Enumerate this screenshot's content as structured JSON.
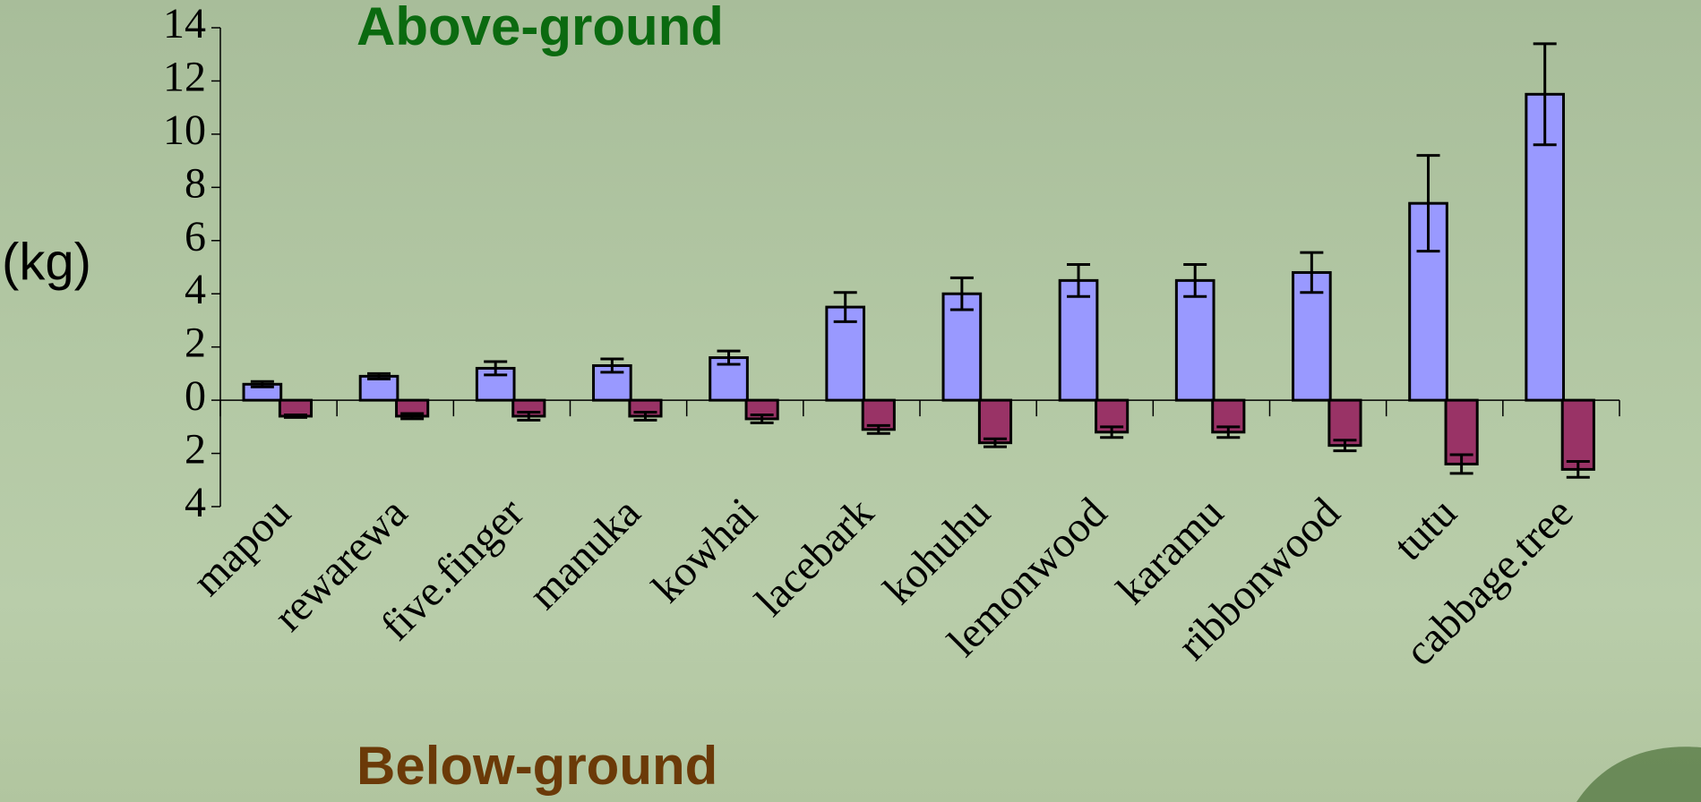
{
  "chart_data": {
    "type": "bar",
    "y_label": "(kg)",
    "categories": [
      "mapou",
      "rewarewa",
      "five.finger",
      "manuka",
      "kowhai",
      "lacebark",
      "kohuhu",
      "lemonwood",
      "karamu",
      "ribbonwood",
      "tutu",
      "cabbage.tree"
    ],
    "series": [
      {
        "name": "Above-ground",
        "color": "#9999ff",
        "label_color": "#0b6a10",
        "values": [
          0.6,
          0.9,
          1.2,
          1.3,
          1.6,
          3.5,
          4.0,
          4.5,
          4.5,
          4.8,
          7.4,
          11.5
        ],
        "errors": [
          0.1,
          0.1,
          0.25,
          0.25,
          0.25,
          0.55,
          0.6,
          0.6,
          0.6,
          0.75,
          1.8,
          1.9
        ]
      },
      {
        "name": "Below-ground",
        "color": "#993366",
        "label_color": "#6b3a08",
        "values": [
          -0.6,
          -0.6,
          -0.6,
          -0.6,
          -0.7,
          -1.1,
          -1.6,
          -1.2,
          -1.2,
          -1.7,
          -2.4,
          -2.6
        ],
        "errors": [
          0.05,
          0.1,
          0.15,
          0.15,
          0.15,
          0.15,
          0.15,
          0.2,
          0.2,
          0.2,
          0.35,
          0.3
        ]
      }
    ],
    "ylim": [
      -4,
      14
    ],
    "yticks": [
      {
        "value": -4,
        "label": "4"
      },
      {
        "value": -2,
        "label": "2"
      },
      0,
      2,
      4,
      6,
      8,
      10,
      12,
      14
    ]
  }
}
